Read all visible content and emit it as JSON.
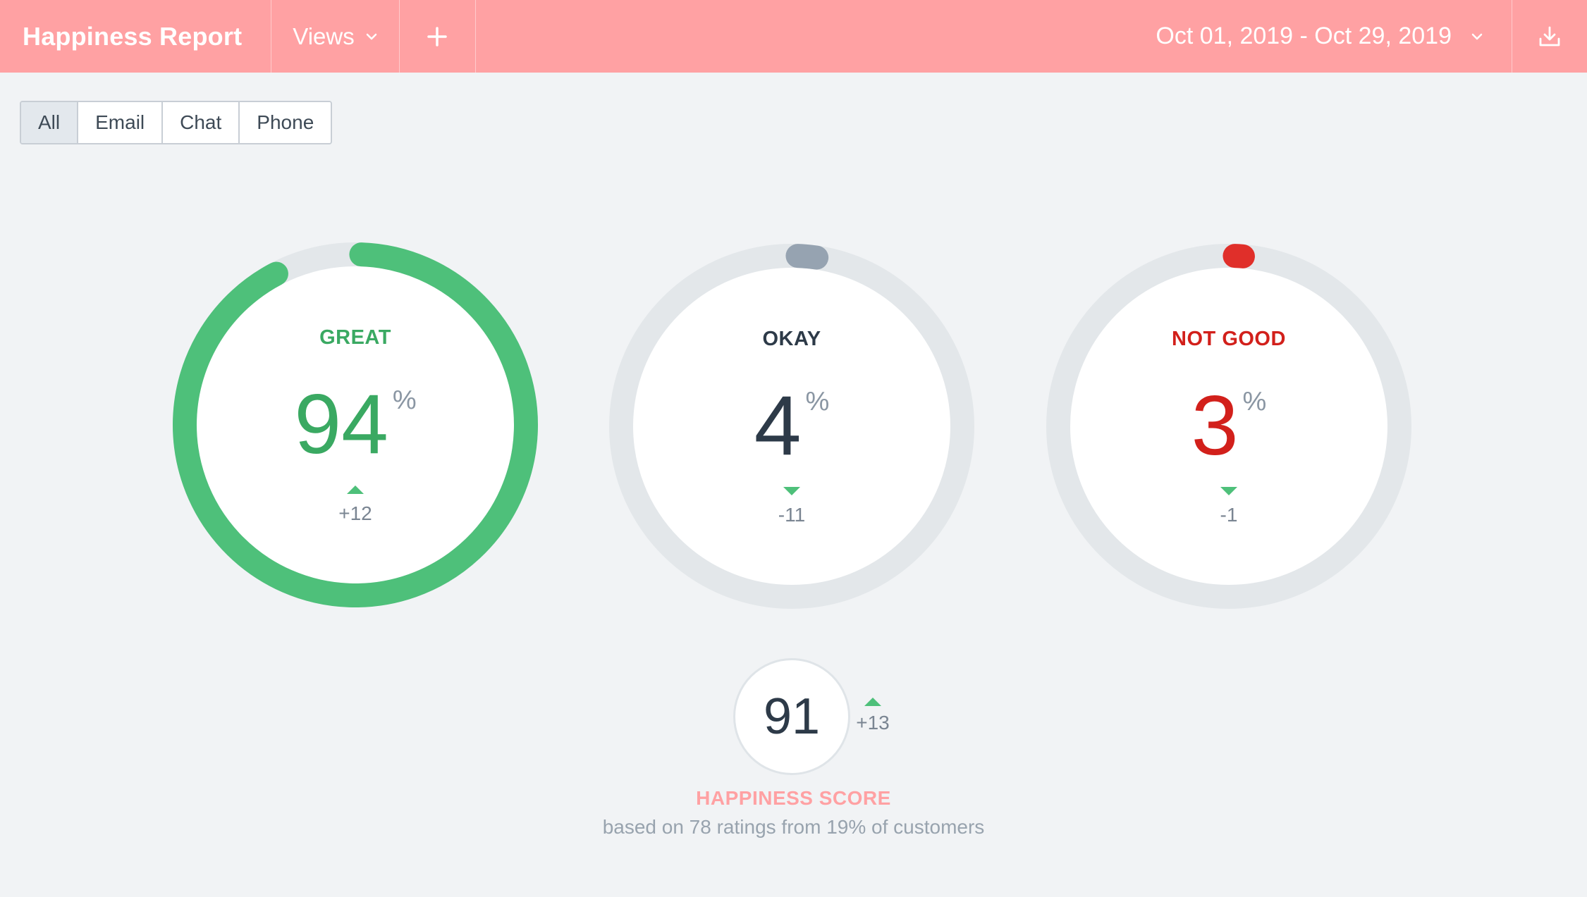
{
  "header": {
    "title": "Happiness Report",
    "views_label": "Views",
    "date_range": "Oct 01, 2019 - Oct 29, 2019",
    "icons": {
      "views_dropdown": "chevron-down-icon",
      "add": "plus-icon",
      "date_dropdown": "chevron-down-icon",
      "download": "download-icon"
    },
    "background_color": "#ffa1a3"
  },
  "filters": {
    "tabs": [
      {
        "label": "All",
        "active": true
      },
      {
        "label": "Email",
        "active": false
      },
      {
        "label": "Chat",
        "active": false
      },
      {
        "label": "Phone",
        "active": false
      }
    ]
  },
  "ratings": [
    {
      "label": "GREAT",
      "value": "94",
      "unit": "%",
      "fraction": 0.94,
      "change": "+12",
      "direction": "up",
      "color": "#4ec07a",
      "label_color": "#3aa962",
      "value_color": "#3aa962"
    },
    {
      "label": "OKAY",
      "value": "4",
      "unit": "%",
      "fraction": 0.04,
      "change": "-11",
      "direction": "down",
      "color": "#96a3b1",
      "label_color": "#2d3a48",
      "value_color": "#2d3a48"
    },
    {
      "label": "NOT GOOD",
      "value": "3",
      "unit": "%",
      "fraction": 0.03,
      "change": "-1",
      "direction": "down",
      "color": "#e02f2a",
      "label_color": "#d2201b",
      "value_color": "#d2201b"
    }
  ],
  "score": {
    "value": "91",
    "change": "+13",
    "direction": "up",
    "label": "HAPPINESS SCORE",
    "subtitle": "based on 78 ratings from 19% of customers"
  },
  "colors": {
    "ring_track": "#e3e7ea",
    "trend_indicator": "#4ec07a"
  }
}
